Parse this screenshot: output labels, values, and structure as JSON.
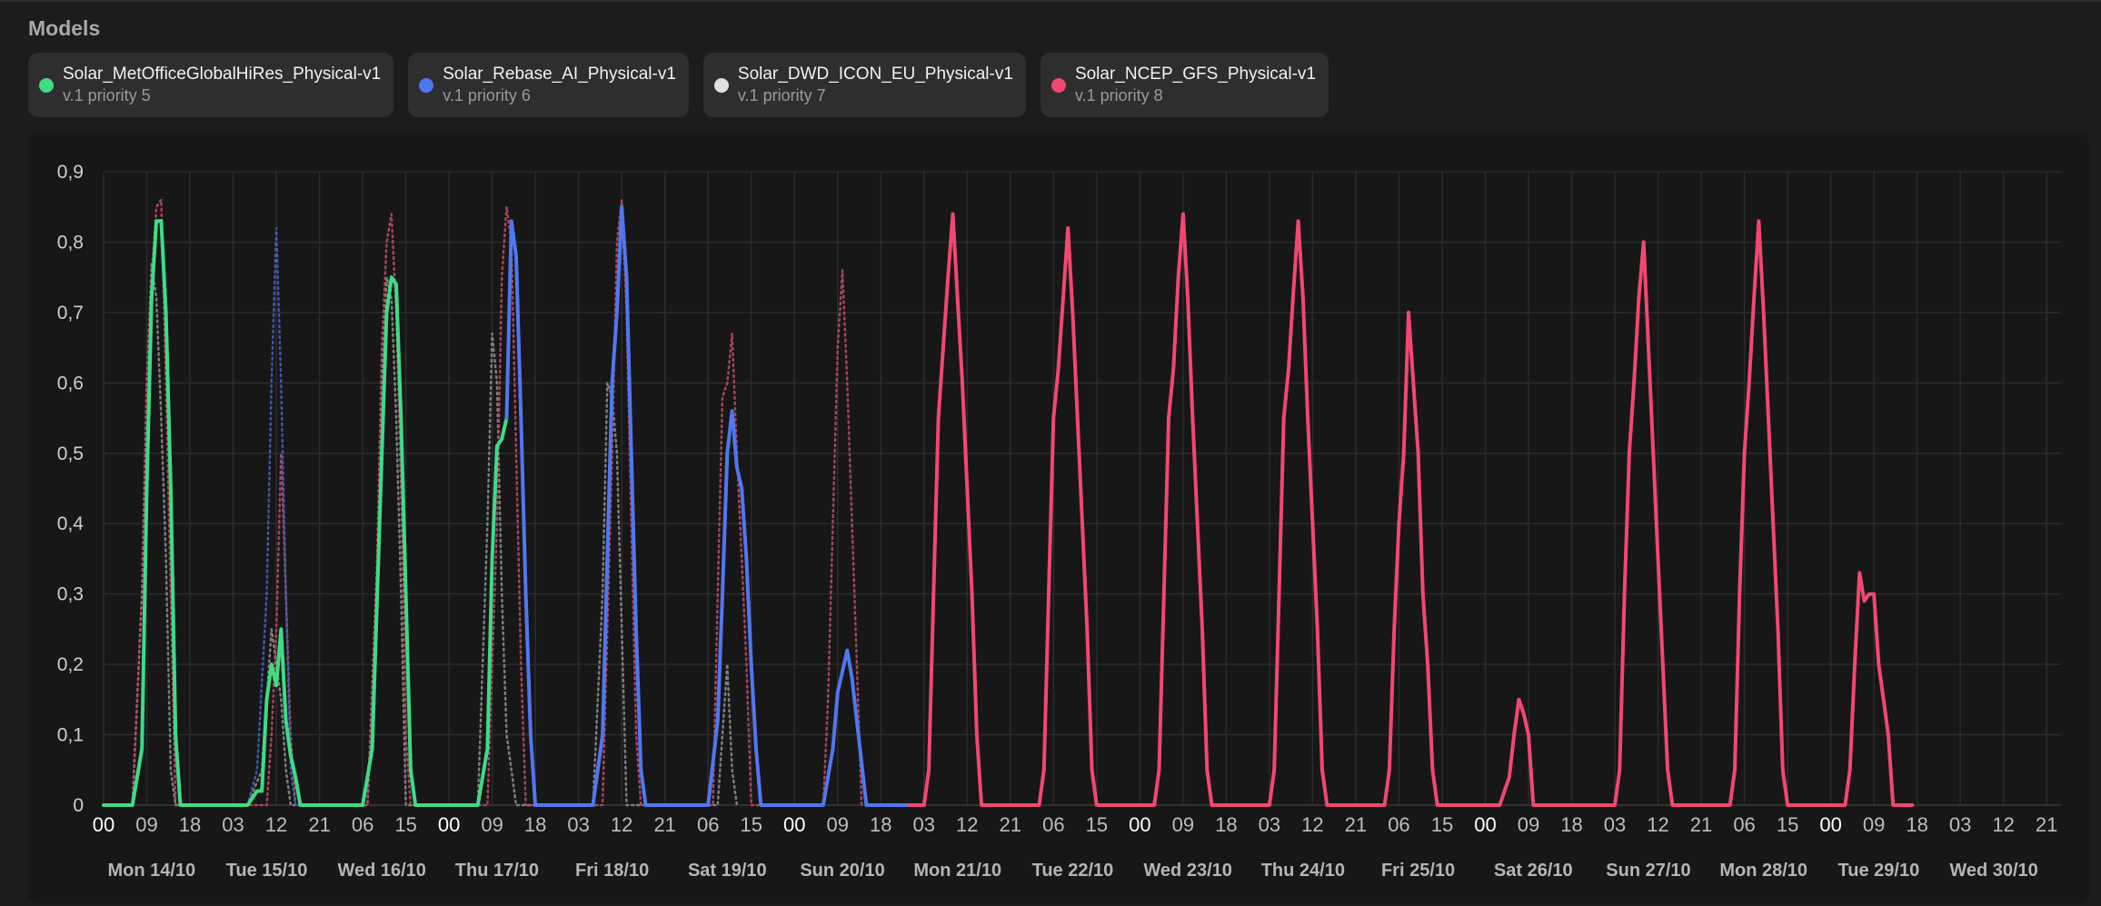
{
  "header": {
    "title": "Models"
  },
  "models": [
    {
      "name": "Solar_MetOfficeGlobalHiRes_Physical-v1",
      "subtitle": "v.1 priority 5",
      "color": "#3ddc84"
    },
    {
      "name": "Solar_Rebase_AI_Physical-v1",
      "subtitle": "v.1 priority 6",
      "color": "#4f78f0"
    },
    {
      "name": "Solar_DWD_ICON_EU_Physical-v1",
      "subtitle": "v.1 priority 7",
      "color": "#e0e0e0"
    },
    {
      "name": "Solar_NCEP_GFS_Physical-v1",
      "subtitle": "v.1 priority 8",
      "color": "#f2486f"
    }
  ],
  "chart_data": {
    "type": "line",
    "ylim": [
      0,
      0.9
    ],
    "y_ticks": [
      "0",
      "0,1",
      "0,2",
      "0,3",
      "0,4",
      "0,5",
      "0,6",
      "0,7",
      "0,8",
      "0,9"
    ],
    "x_range_hours": [
      0,
      408
    ],
    "x_hour_ticks": [
      "00",
      "09",
      "18",
      "03",
      "12",
      "21",
      "06",
      "15",
      "00",
      "09",
      "18",
      "03",
      "12",
      "21",
      "06",
      "15",
      "00",
      "09",
      "18",
      "03",
      "12",
      "21",
      "06",
      "15",
      "00",
      "09",
      "18",
      "03",
      "12",
      "21",
      "06",
      "15",
      "00",
      "09",
      "18",
      "03",
      "12",
      "21",
      "06",
      "15",
      "00",
      "09",
      "18",
      "03",
      "12",
      "21"
    ],
    "day_labels": [
      "Mon 14/10",
      "Tue 15/10",
      "Wed 16/10",
      "Thu 17/10",
      "Fri 18/10",
      "Sat 19/10",
      "Sun 20/10",
      "Mon 21/10",
      "Tue 22/10",
      "Wed 23/10",
      "Thu 24/10",
      "Fri 25/10",
      "Sat 26/10",
      "Sun 27/10",
      "Mon 28/10",
      "Tue 29/10",
      "Wed 30/10"
    ],
    "grid": true,
    "series": [
      {
        "name": "Solar_MetOfficeGlobalHiRes_Physical-v1",
        "color": "#3ddc84",
        "style": "solid",
        "points": [
          [
            0,
            0
          ],
          [
            6,
            0
          ],
          [
            8,
            0.08
          ],
          [
            9,
            0.45
          ],
          [
            10,
            0.72
          ],
          [
            11,
            0.83
          ],
          [
            12,
            0.83
          ],
          [
            13,
            0.7
          ],
          [
            14,
            0.45
          ],
          [
            15,
            0.1
          ],
          [
            16,
            0
          ],
          [
            30,
            0
          ],
          [
            32,
            0.02
          ],
          [
            33,
            0.02
          ],
          [
            34,
            0.15
          ],
          [
            35,
            0.2
          ],
          [
            36,
            0.17
          ],
          [
            37,
            0.25
          ],
          [
            38,
            0.12
          ],
          [
            39,
            0.07
          ],
          [
            40,
            0.04
          ],
          [
            41,
            0
          ],
          [
            54,
            0
          ],
          [
            56,
            0.08
          ],
          [
            58,
            0.5
          ],
          [
            59,
            0.7
          ],
          [
            60,
            0.75
          ],
          [
            61,
            0.74
          ],
          [
            62,
            0.55
          ],
          [
            63,
            0.3
          ],
          [
            64,
            0.05
          ],
          [
            65,
            0
          ],
          [
            78,
            0
          ],
          [
            80,
            0.08
          ],
          [
            81,
            0.35
          ],
          [
            82,
            0.51
          ],
          [
            83,
            0.52
          ],
          [
            84,
            0.55
          ]
        ]
      },
      {
        "name": "Solar_Rebase_AI_Physical-v1",
        "color": "#4f78f0",
        "style": "solid",
        "points": [
          [
            84,
            0.55
          ],
          [
            85,
            0.83
          ],
          [
            86,
            0.78
          ],
          [
            87,
            0.55
          ],
          [
            88,
            0.3
          ],
          [
            89,
            0.1
          ],
          [
            90,
            0
          ],
          [
            102,
            0
          ],
          [
            104,
            0.1
          ],
          [
            105,
            0.35
          ],
          [
            106,
            0.6
          ],
          [
            107,
            0.7
          ],
          [
            108,
            0.85
          ],
          [
            109,
            0.75
          ],
          [
            110,
            0.5
          ],
          [
            111,
            0.25
          ],
          [
            112,
            0.05
          ],
          [
            113,
            0
          ],
          [
            126,
            0
          ],
          [
            128,
            0.12
          ],
          [
            129,
            0.3
          ],
          [
            130,
            0.5
          ],
          [
            131,
            0.56
          ],
          [
            132,
            0.48
          ],
          [
            133,
            0.45
          ],
          [
            134,
            0.35
          ],
          [
            135,
            0.2
          ],
          [
            136,
            0.08
          ],
          [
            137,
            0
          ],
          [
            150,
            0
          ],
          [
            152,
            0.08
          ],
          [
            153,
            0.16
          ],
          [
            155,
            0.22
          ],
          [
            156,
            0.18
          ],
          [
            157,
            0.12
          ],
          [
            158,
            0.06
          ],
          [
            159,
            0
          ],
          [
            168,
            0
          ]
        ]
      },
      {
        "name": "Solar_NCEP_GFS_Physical-v1",
        "color": "#f2486f",
        "style": "solid",
        "points": [
          [
            168,
            0
          ],
          [
            171,
            0
          ],
          [
            172,
            0.05
          ],
          [
            173,
            0.3
          ],
          [
            174,
            0.55
          ],
          [
            175,
            0.65
          ],
          [
            176,
            0.75
          ],
          [
            177,
            0.84
          ],
          [
            178,
            0.72
          ],
          [
            179,
            0.6
          ],
          [
            180,
            0.45
          ],
          [
            181,
            0.3
          ],
          [
            182,
            0.1
          ],
          [
            183,
            0
          ],
          [
            195,
            0
          ],
          [
            196,
            0.05
          ],
          [
            197,
            0.3
          ],
          [
            198,
            0.55
          ],
          [
            199,
            0.62
          ],
          [
            200,
            0.72
          ],
          [
            201,
            0.82
          ],
          [
            202,
            0.7
          ],
          [
            203,
            0.55
          ],
          [
            204,
            0.4
          ],
          [
            205,
            0.25
          ],
          [
            206,
            0.05
          ],
          [
            207,
            0
          ],
          [
            219,
            0
          ],
          [
            220,
            0.05
          ],
          [
            221,
            0.3
          ],
          [
            222,
            0.55
          ],
          [
            223,
            0.62
          ],
          [
            224,
            0.75
          ],
          [
            225,
            0.84
          ],
          [
            226,
            0.72
          ],
          [
            227,
            0.55
          ],
          [
            228,
            0.4
          ],
          [
            229,
            0.25
          ],
          [
            230,
            0.05
          ],
          [
            231,
            0
          ],
          [
            243,
            0
          ],
          [
            244,
            0.05
          ],
          [
            245,
            0.3
          ],
          [
            246,
            0.55
          ],
          [
            247,
            0.62
          ],
          [
            248,
            0.73
          ],
          [
            249,
            0.83
          ],
          [
            250,
            0.72
          ],
          [
            251,
            0.55
          ],
          [
            252,
            0.4
          ],
          [
            253,
            0.25
          ],
          [
            254,
            0.05
          ],
          [
            255,
            0
          ],
          [
            267,
            0
          ],
          [
            268,
            0.05
          ],
          [
            269,
            0.25
          ],
          [
            270,
            0.4
          ],
          [
            271,
            0.5
          ],
          [
            272,
            0.7
          ],
          [
            273,
            0.6
          ],
          [
            274,
            0.5
          ],
          [
            275,
            0.3
          ],
          [
            276,
            0.2
          ],
          [
            277,
            0.05
          ],
          [
            278,
            0
          ],
          [
            291,
            0
          ],
          [
            293,
            0.04
          ],
          [
            294,
            0.1
          ],
          [
            295,
            0.15
          ],
          [
            296,
            0.13
          ],
          [
            297,
            0.1
          ],
          [
            298,
            0
          ],
          [
            315,
            0
          ],
          [
            316,
            0.05
          ],
          [
            317,
            0.3
          ],
          [
            318,
            0.5
          ],
          [
            319,
            0.6
          ],
          [
            320,
            0.72
          ],
          [
            321,
            0.8
          ],
          [
            322,
            0.65
          ],
          [
            323,
            0.5
          ],
          [
            324,
            0.35
          ],
          [
            325,
            0.2
          ],
          [
            326,
            0.05
          ],
          [
            327,
            0
          ],
          [
            339,
            0
          ],
          [
            340,
            0.05
          ],
          [
            341,
            0.3
          ],
          [
            342,
            0.5
          ],
          [
            343,
            0.6
          ],
          [
            344,
            0.72
          ],
          [
            345,
            0.83
          ],
          [
            346,
            0.7
          ],
          [
            347,
            0.55
          ],
          [
            348,
            0.4
          ],
          [
            349,
            0.25
          ],
          [
            350,
            0.05
          ],
          [
            351,
            0
          ],
          [
            363,
            0
          ],
          [
            364,
            0.05
          ],
          [
            365,
            0.2
          ],
          [
            366,
            0.33
          ],
          [
            367,
            0.29
          ],
          [
            368,
            0.3
          ],
          [
            369,
            0.3
          ],
          [
            370,
            0.2
          ],
          [
            371,
            0.15
          ],
          [
            372,
            0.1
          ],
          [
            373,
            0
          ],
          [
            377,
            0
          ]
        ]
      },
      {
        "name": "Solar_DWD_ICON_EU_Physical-v1",
        "color": "#8a8a8a",
        "style": "dotted",
        "points": [
          [
            6,
            0
          ],
          [
            8,
            0.3
          ],
          [
            9,
            0.6
          ],
          [
            10,
            0.77
          ],
          [
            11,
            0.72
          ],
          [
            12,
            0.55
          ],
          [
            13,
            0.35
          ],
          [
            14,
            0.05
          ],
          [
            15,
            0
          ],
          [
            30,
            0
          ],
          [
            33,
            0.05
          ],
          [
            35,
            0.25
          ],
          [
            36,
            0.2
          ],
          [
            37,
            0.15
          ],
          [
            38,
            0.05
          ],
          [
            39,
            0
          ],
          [
            55,
            0
          ],
          [
            57,
            0.3
          ],
          [
            58,
            0.6
          ],
          [
            59,
            0.75
          ],
          [
            60,
            0.72
          ],
          [
            61,
            0.55
          ],
          [
            62,
            0.3
          ],
          [
            63,
            0
          ],
          [
            78,
            0
          ],
          [
            80,
            0.4
          ],
          [
            81,
            0.67
          ],
          [
            82,
            0.6
          ],
          [
            83,
            0.3
          ],
          [
            84,
            0.1
          ],
          [
            85,
            0.05
          ],
          [
            86,
            0
          ],
          [
            102,
            0
          ],
          [
            104,
            0.3
          ],
          [
            105,
            0.6
          ],
          [
            106,
            0.58
          ],
          [
            107,
            0.5
          ],
          [
            108,
            0.25
          ],
          [
            109,
            0
          ],
          [
            128,
            0
          ],
          [
            129,
            0.1
          ],
          [
            130,
            0.2
          ],
          [
            131,
            0.05
          ],
          [
            132,
            0
          ]
        ]
      },
      {
        "name": "Solar_NCEP_GFS_Physical-v1",
        "color": "#b84a62",
        "style": "dotted",
        "points": [
          [
            6,
            0
          ],
          [
            8,
            0.3
          ],
          [
            9,
            0.6
          ],
          [
            10,
            0.75
          ],
          [
            11,
            0.85
          ],
          [
            12,
            0.86
          ],
          [
            13,
            0.6
          ],
          [
            14,
            0.3
          ],
          [
            15,
            0
          ],
          [
            34,
            0
          ],
          [
            35,
            0.1
          ],
          [
            36,
            0.25
          ],
          [
            37,
            0.5
          ],
          [
            38,
            0.3
          ],
          [
            39,
            0.1
          ],
          [
            40,
            0
          ],
          [
            55,
            0
          ],
          [
            57,
            0.35
          ],
          [
            58,
            0.65
          ],
          [
            59,
            0.8
          ],
          [
            60,
            0.84
          ],
          [
            61,
            0.7
          ],
          [
            62,
            0.45
          ],
          [
            63,
            0.1
          ],
          [
            64,
            0
          ],
          [
            80,
            0
          ],
          [
            82,
            0.4
          ],
          [
            83,
            0.75
          ],
          [
            84,
            0.85
          ],
          [
            85,
            0.8
          ],
          [
            86,
            0.5
          ],
          [
            87,
            0.2
          ],
          [
            88,
            0
          ],
          [
            104,
            0
          ],
          [
            106,
            0.5
          ],
          [
            107,
            0.8
          ],
          [
            108,
            0.86
          ],
          [
            109,
            0.7
          ],
          [
            110,
            0.4
          ],
          [
            111,
            0.1
          ],
          [
            112,
            0
          ],
          [
            127,
            0
          ],
          [
            128,
            0.3
          ],
          [
            129,
            0.58
          ],
          [
            130,
            0.6
          ],
          [
            131,
            0.67
          ],
          [
            132,
            0.5
          ],
          [
            133,
            0.35
          ],
          [
            134,
            0.2
          ],
          [
            135,
            0
          ],
          [
            150,
            0
          ],
          [
            151,
            0.15
          ],
          [
            152,
            0.4
          ],
          [
            153,
            0.65
          ],
          [
            154,
            0.76
          ],
          [
            155,
            0.6
          ],
          [
            156,
            0.4
          ],
          [
            157,
            0.2
          ],
          [
            158,
            0
          ]
        ]
      },
      {
        "name": "Solar_Rebase_AI_Physical-v1",
        "color": "#3f5fbf",
        "style": "dotted",
        "points": [
          [
            30,
            0
          ],
          [
            32,
            0.05
          ],
          [
            34,
            0.3
          ],
          [
            35,
            0.6
          ],
          [
            36,
            0.82
          ],
          [
            37,
            0.6
          ],
          [
            38,
            0.3
          ],
          [
            39,
            0.05
          ],
          [
            40,
            0
          ]
        ]
      }
    ]
  }
}
